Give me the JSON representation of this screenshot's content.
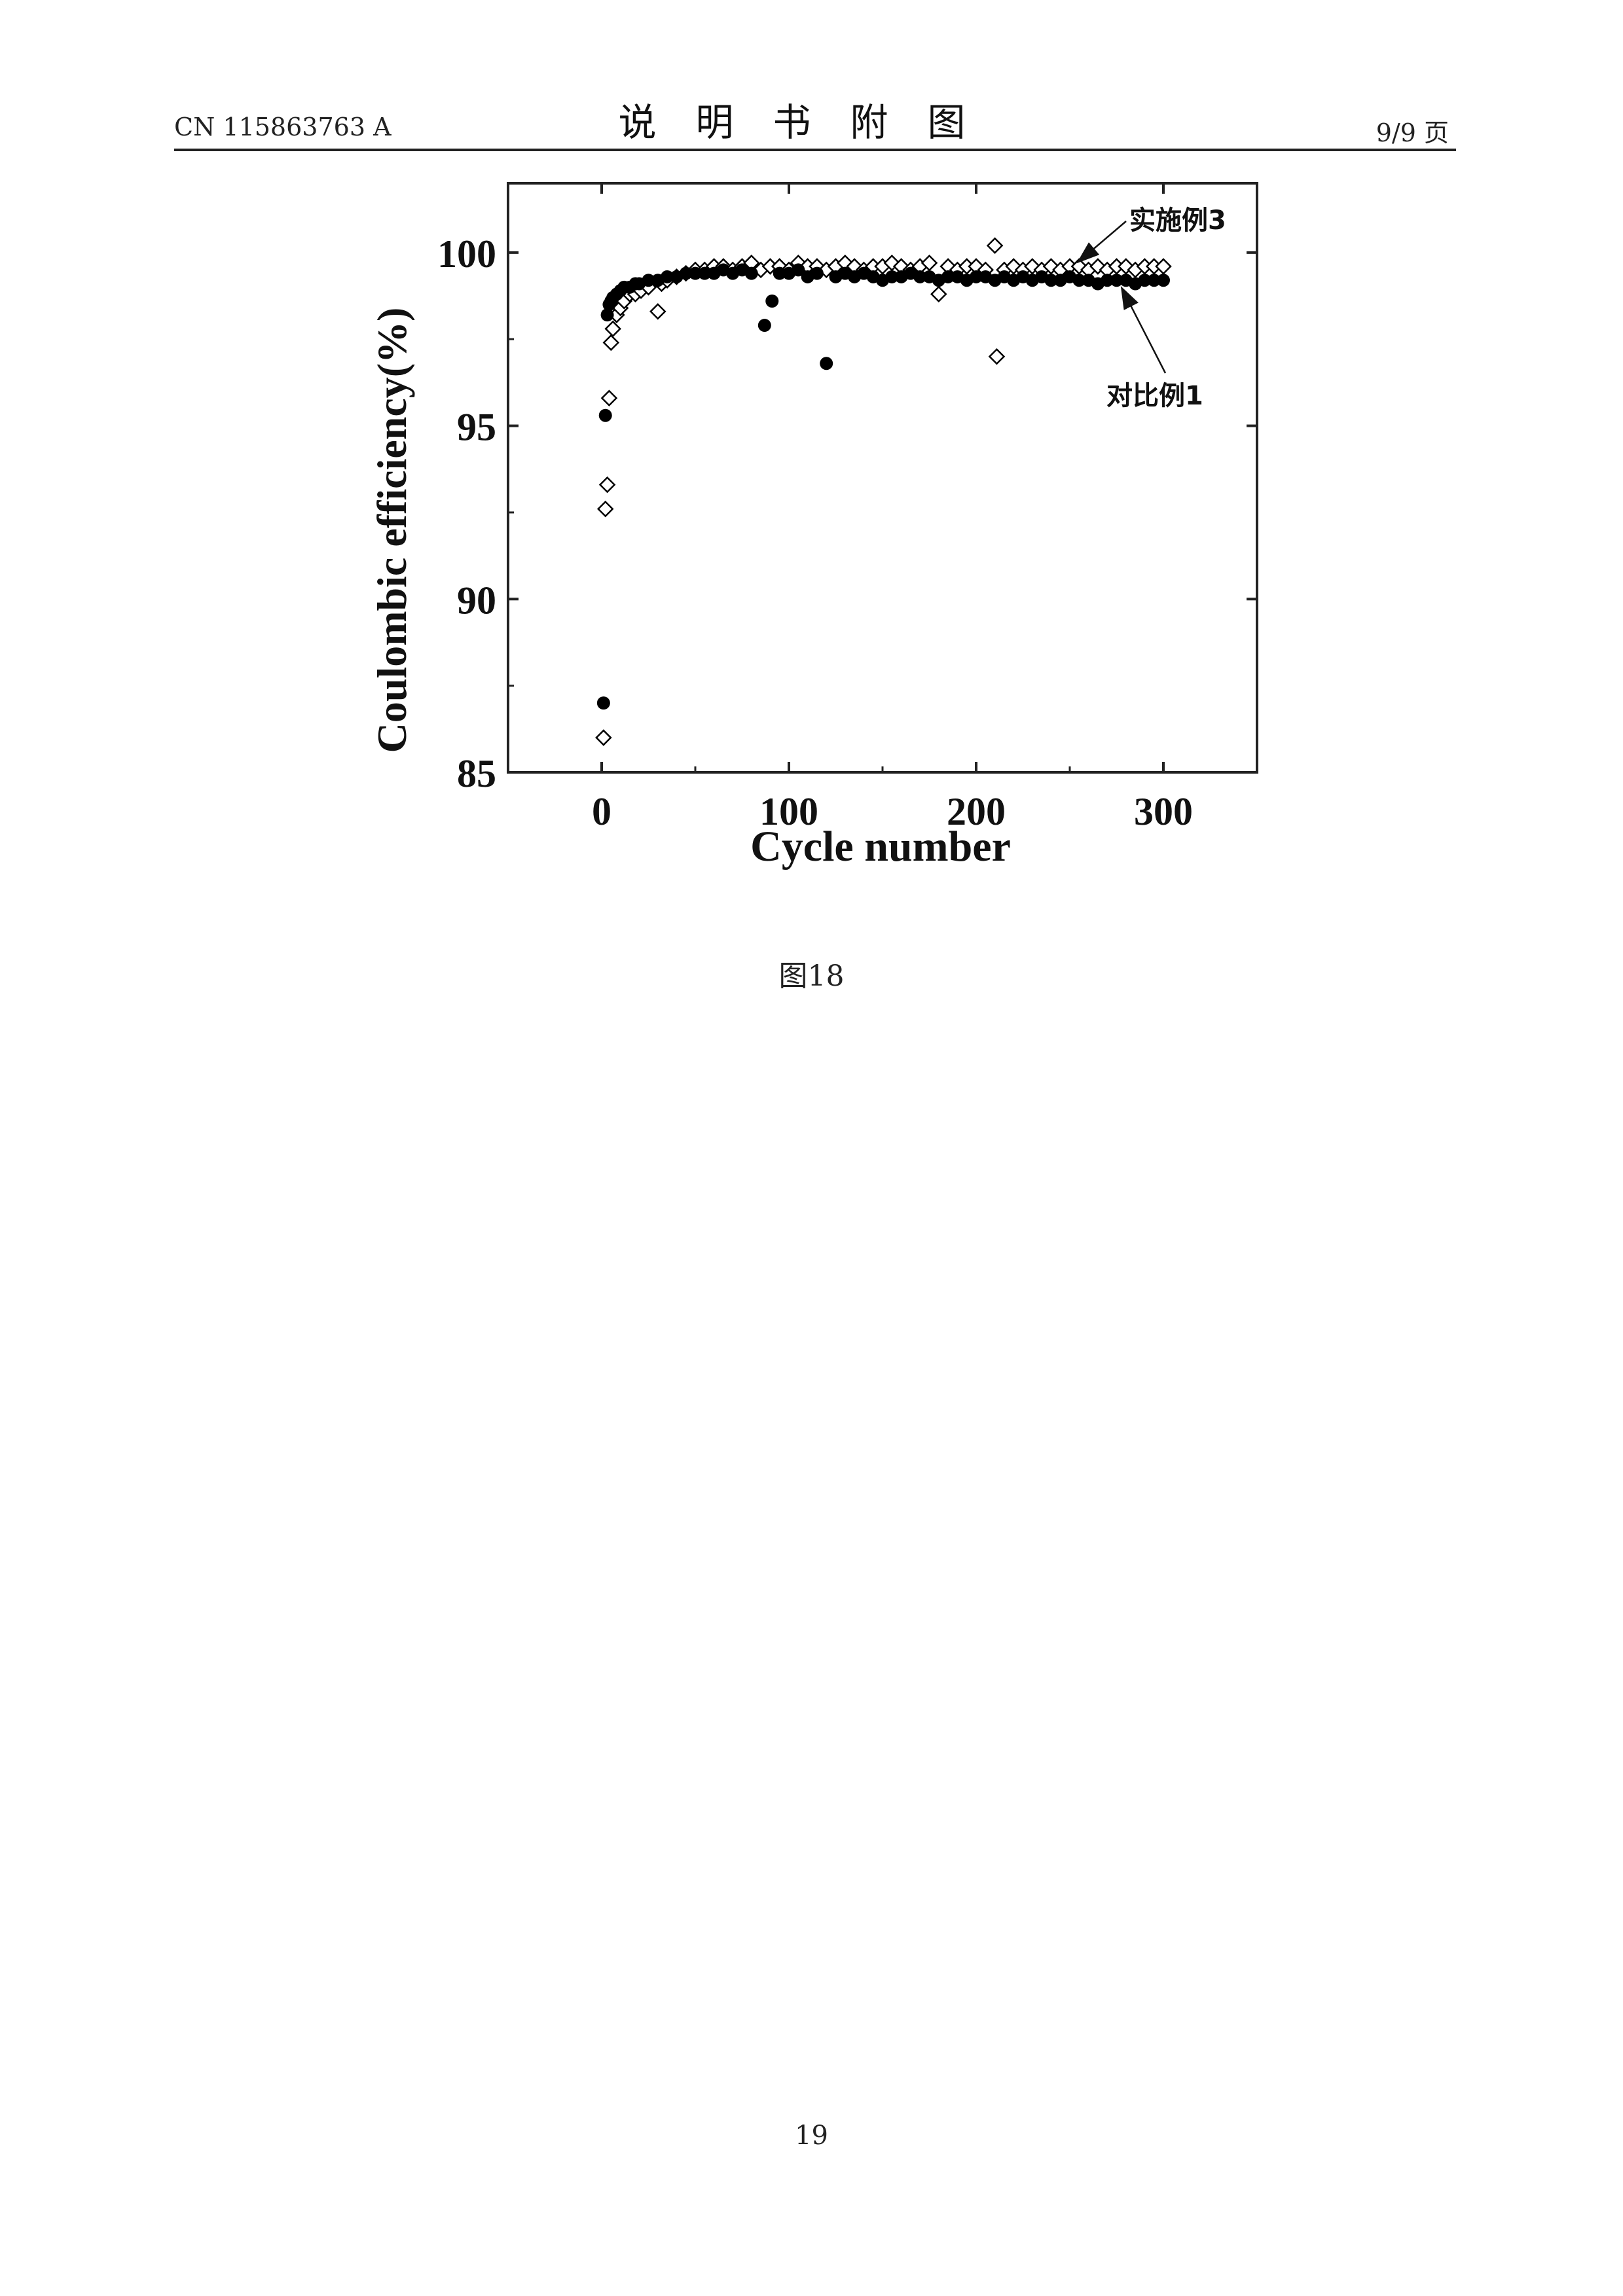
{
  "header": {
    "doc_number": "CN 115863763 A",
    "section_title": "说明书附图",
    "page_info": "9/9 页"
  },
  "figure": {
    "caption": "图18"
  },
  "footer": {
    "page_number": "19"
  },
  "chart_data": {
    "type": "scatter",
    "title": "",
    "xlabel": "Cycle number",
    "ylabel": "Coulombic efficiency(%)",
    "xlim": [
      -50,
      350
    ],
    "ylim": [
      85,
      102
    ],
    "xticks": [
      0,
      100,
      200,
      300
    ],
    "yticks": [
      85,
      90,
      95,
      100
    ],
    "grid": false,
    "series": [
      {
        "name": "实施例3",
        "marker": "open-diamond",
        "color": "#000000",
        "x": [
          1,
          2,
          3,
          4,
          5,
          6,
          8,
          10,
          12,
          15,
          18,
          21,
          25,
          30,
          32,
          35,
          40,
          45,
          50,
          55,
          60,
          65,
          70,
          75,
          80,
          85,
          90,
          95,
          100,
          105,
          110,
          115,
          120,
          125,
          130,
          135,
          140,
          145,
          150,
          155,
          160,
          165,
          170,
          175,
          180,
          185,
          190,
          195,
          200,
          205,
          210,
          211,
          215,
          220,
          225,
          230,
          235,
          240,
          245,
          250,
          255,
          260,
          265,
          270,
          275,
          280,
          285,
          290,
          295,
          300
        ],
        "y": [
          86.0,
          92.6,
          93.3,
          95.8,
          97.4,
          97.8,
          98.2,
          98.4,
          98.6,
          98.8,
          98.8,
          98.9,
          99.0,
          98.3,
          99.1,
          99.2,
          99.3,
          99.4,
          99.5,
          99.5,
          99.6,
          99.6,
          99.5,
          99.6,
          99.7,
          99.5,
          99.6,
          99.6,
          99.5,
          99.7,
          99.6,
          99.6,
          99.5,
          99.6,
          99.7,
          99.6,
          99.5,
          99.6,
          99.6,
          99.7,
          99.6,
          99.5,
          99.6,
          99.7,
          98.8,
          99.6,
          99.5,
          99.6,
          99.6,
          99.5,
          100.2,
          97.0,
          99.5,
          99.6,
          99.5,
          99.6,
          99.5,
          99.6,
          99.5,
          99.6,
          99.6,
          99.5,
          99.6,
          99.5,
          99.6,
          99.6,
          99.5,
          99.6,
          99.6,
          99.6
        ]
      },
      {
        "name": "对比例1",
        "marker": "filled-circle",
        "color": "#000000",
        "x": [
          1,
          2,
          3,
          4,
          5,
          6,
          8,
          10,
          12,
          15,
          18,
          20,
          25,
          30,
          35,
          40,
          45,
          50,
          55,
          60,
          65,
          70,
          75,
          80,
          87,
          91,
          95,
          100,
          105,
          110,
          115,
          120,
          125,
          130,
          135,
          140,
          145,
          150,
          155,
          160,
          165,
          170,
          175,
          180,
          185,
          190,
          195,
          200,
          205,
          210,
          215,
          220,
          225,
          230,
          235,
          240,
          245,
          250,
          255,
          260,
          265,
          270,
          275,
          280,
          285,
          290,
          295,
          300
        ],
        "y": [
          87.0,
          95.3,
          98.2,
          98.5,
          98.6,
          98.7,
          98.8,
          98.9,
          99.0,
          99.0,
          99.1,
          99.1,
          99.2,
          99.2,
          99.3,
          99.3,
          99.4,
          99.4,
          99.4,
          99.4,
          99.5,
          99.4,
          99.5,
          99.4,
          97.9,
          98.6,
          99.4,
          99.4,
          99.5,
          99.3,
          99.4,
          96.8,
          99.3,
          99.4,
          99.3,
          99.4,
          99.3,
          99.2,
          99.3,
          99.3,
          99.4,
          99.3,
          99.3,
          99.2,
          99.3,
          99.3,
          99.2,
          99.3,
          99.3,
          99.2,
          99.3,
          99.2,
          99.3,
          99.2,
          99.3,
          99.2,
          99.2,
          99.3,
          99.2,
          99.2,
          99.1,
          99.2,
          99.2,
          99.2,
          99.1,
          99.2,
          99.2,
          99.2
        ]
      }
    ],
    "annotations": [
      {
        "text": "实施例3",
        "target_series": "实施例3"
      },
      {
        "text": "对比例1",
        "target_series": "对比例1"
      }
    ]
  }
}
